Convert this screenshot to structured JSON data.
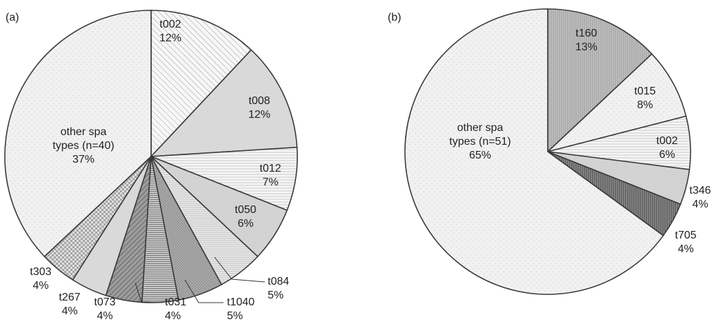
{
  "chart_data": [
    {
      "type": "pie",
      "panel_label": "(a)",
      "start": "top, clockwise",
      "slices": [
        {
          "id": "t002",
          "lines": [
            "t002",
            "12%"
          ],
          "value": 12,
          "fill": "hatch-diag-light",
          "label_pos": "inside",
          "color": "#f2f2f2"
        },
        {
          "id": "t008",
          "lines": [
            "t008",
            "12%"
          ],
          "value": 12,
          "fill": "solid-light",
          "label_pos": "inside",
          "color": "#d9d9d9"
        },
        {
          "id": "t012",
          "lines": [
            "t012",
            "7%"
          ],
          "value": 7,
          "fill": "horizontal-lines",
          "label_pos": "inside",
          "color": "#f3f3f3"
        },
        {
          "id": "t050",
          "lines": [
            "t050",
            "6%"
          ],
          "value": 6,
          "fill": "solid-gray",
          "label_pos": "inside",
          "color": "#d6d6d6"
        },
        {
          "id": "t084",
          "lines": [
            "t084",
            "5%"
          ],
          "value": 5,
          "fill": "horizontal-fine",
          "label_pos": "outside",
          "color": "#e4e4e4"
        },
        {
          "id": "t1040",
          "lines": [
            "t1040",
            "5%"
          ],
          "value": 5,
          "fill": "dots-dark",
          "label_pos": "outside",
          "color": "#a6a6a6"
        },
        {
          "id": "t031",
          "lines": [
            "t031",
            "4%"
          ],
          "value": 4,
          "fill": "horizontal-dark",
          "label_pos": "outside",
          "color": "#b7b7b7"
        },
        {
          "id": "t073",
          "lines": [
            "t073",
            "4%"
          ],
          "value": 4,
          "fill": "diag-dark",
          "label_pos": "outside",
          "color": "#8f8f8f"
        },
        {
          "id": "t267",
          "lines": [
            "t267",
            "4%"
          ],
          "value": 4,
          "fill": "solid-light",
          "label_pos": "outside",
          "color": "#d0d0d0"
        },
        {
          "id": "t303",
          "lines": [
            "t303",
            "4%"
          ],
          "value": 4,
          "fill": "checker",
          "label_pos": "outside",
          "color": "#cccccc"
        },
        {
          "id": "other",
          "lines": [
            "other spa",
            "types (n=40)",
            "37%"
          ],
          "value": 37,
          "fill": "dots-light",
          "label_pos": "inside",
          "color": "#efefef"
        }
      ]
    },
    {
      "type": "pie",
      "panel_label": "(b)",
      "start": "top, clockwise",
      "slices": [
        {
          "id": "t160",
          "lines": [
            "t160",
            "13%"
          ],
          "value": 13,
          "fill": "vertical-lines",
          "label_pos": "inside",
          "color": "#b9b9b9"
        },
        {
          "id": "t015",
          "lines": [
            "t015",
            "8%"
          ],
          "value": 8,
          "fill": "dots-light",
          "label_pos": "inside",
          "color": "#e2e2e2"
        },
        {
          "id": "t002",
          "lines": [
            "t002",
            "6%"
          ],
          "value": 6,
          "fill": "horizontal-lines",
          "label_pos": "inside",
          "color": "#f3f3f3"
        },
        {
          "id": "t346",
          "lines": [
            "t346",
            "4%"
          ],
          "value": 4,
          "fill": "solid-gray",
          "label_pos": "outside",
          "color": "#c9c9c9"
        },
        {
          "id": "t705",
          "lines": [
            "t705",
            "4%"
          ],
          "value": 4,
          "fill": "vertical-dark",
          "label_pos": "outside",
          "color": "#858585"
        },
        {
          "id": "other",
          "lines": [
            "other spa",
            "types (n=51)",
            "65%"
          ],
          "value": 65,
          "fill": "dots-light",
          "label_pos": "inside",
          "color": "#efefef"
        }
      ]
    }
  ]
}
